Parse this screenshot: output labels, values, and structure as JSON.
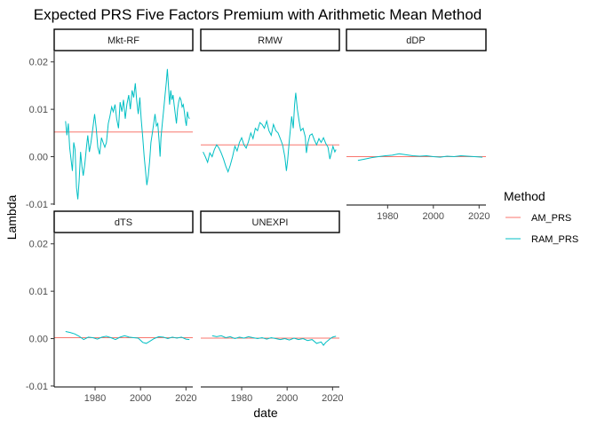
{
  "chart_data": {
    "type": "line",
    "title": "Expected PRS Five Factors Premium with Arithmetic Mean Method",
    "xlabel": "date",
    "ylabel": "Lambda",
    "xlim": [
      1962,
      2023
    ],
    "ylim": [
      -0.0102,
      0.0222
    ],
    "x_ticks": [
      1980,
      2000,
      2020
    ],
    "y_ticks": [
      -0.01,
      0.0,
      0.01,
      0.02
    ],
    "y_tick_labels": [
      "-0.01",
      "0.00",
      "0.01",
      "0.02"
    ],
    "grid": false,
    "legend": {
      "title": "Method",
      "position": "right",
      "entries": [
        {
          "label": "AM_PRS",
          "color": "#F8766D"
        },
        {
          "label": "RAM_PRS",
          "color": "#00BFC4"
        }
      ]
    },
    "panels": [
      {
        "name": "Mkt-RF",
        "am_value": 0.0052,
        "ram_series": [
          [
            1967.0,
            0.0075
          ],
          [
            1967.6,
            0.0045
          ],
          [
            1968.2,
            0.007
          ],
          [
            1968.8,
            0.002
          ],
          [
            1969.4,
            -0.0005
          ],
          [
            1970.0,
            -0.003
          ],
          [
            1970.6,
            0.003
          ],
          [
            1971.2,
            0.0015
          ],
          [
            1971.8,
            -0.0065
          ],
          [
            1972.4,
            -0.009
          ],
          [
            1973.0,
            -0.005
          ],
          [
            1973.6,
            0.001
          ],
          [
            1974.2,
            -0.002
          ],
          [
            1974.8,
            -0.004
          ],
          [
            1975.5,
            -0.0015
          ],
          [
            1976.2,
            0.002
          ],
          [
            1976.8,
            0.0045
          ],
          [
            1977.5,
            0.001
          ],
          [
            1978.2,
            0.003
          ],
          [
            1979.0,
            0.006
          ],
          [
            1979.8,
            0.009
          ],
          [
            1980.5,
            0.006
          ],
          [
            1981.2,
            0.002
          ],
          [
            1982.0,
            0.0005
          ],
          [
            1982.8,
            0.004
          ],
          [
            1983.5,
            0.003
          ],
          [
            1984.3,
            0.002
          ],
          [
            1985.0,
            0.003
          ],
          [
            1985.8,
            0.007
          ],
          [
            1986.5,
            0.0085
          ],
          [
            1987.3,
            0.0105
          ],
          [
            1988.0,
            0.0095
          ],
          [
            1988.8,
            0.011
          ],
          [
            1989.5,
            0.008
          ],
          [
            1990.3,
            0.006
          ],
          [
            1991.0,
            0.0115
          ],
          [
            1991.8,
            0.0095
          ],
          [
            1992.5,
            0.012
          ],
          [
            1993.3,
            0.008
          ],
          [
            1994.0,
            0.011
          ],
          [
            1994.8,
            0.013
          ],
          [
            1995.5,
            0.01
          ],
          [
            1996.3,
            0.014
          ],
          [
            1997.0,
            0.0125
          ],
          [
            1997.7,
            0.0155
          ],
          [
            1998.3,
            0.012
          ],
          [
            1999.0,
            0.009
          ],
          [
            1999.7,
            0.0125
          ],
          [
            2000.3,
            0.008
          ],
          [
            2001.0,
            0.004
          ],
          [
            2001.6,
            0.0
          ],
          [
            2002.2,
            -0.003
          ],
          [
            2002.8,
            -0.006
          ],
          [
            2003.4,
            -0.004
          ],
          [
            2004.0,
            -0.001
          ],
          [
            2004.6,
            0.003
          ],
          [
            2005.2,
            0.005
          ],
          [
            2005.8,
            0.007
          ],
          [
            2006.4,
            0.009
          ],
          [
            2007.0,
            0.0065
          ],
          [
            2007.6,
            0.007
          ],
          [
            2008.2,
            0.003
          ],
          [
            2008.6,
            0.0
          ],
          [
            2009.0,
            0.004
          ],
          [
            2009.6,
            0.007
          ],
          [
            2010.2,
            0.01
          ],
          [
            2010.8,
            0.013
          ],
          [
            2011.3,
            0.0155
          ],
          [
            2011.8,
            0.0185
          ],
          [
            2012.3,
            0.015
          ],
          [
            2012.8,
            0.011
          ],
          [
            2013.3,
            0.014
          ],
          [
            2013.8,
            0.012
          ],
          [
            2014.3,
            0.013
          ],
          [
            2014.8,
            0.011
          ],
          [
            2015.3,
            0.009
          ],
          [
            2015.8,
            0.007
          ],
          [
            2016.3,
            0.01
          ],
          [
            2016.8,
            0.0115
          ],
          [
            2017.3,
            0.0125
          ],
          [
            2017.8,
            0.012
          ],
          [
            2018.3,
            0.0105
          ],
          [
            2018.8,
            0.011
          ],
          [
            2019.3,
            0.0095
          ],
          [
            2019.8,
            0.0075
          ],
          [
            2020.2,
            0.0065
          ],
          [
            2020.6,
            0.0095
          ],
          [
            2021.0,
            0.0085
          ],
          [
            2021.5,
            0.008
          ]
        ]
      },
      {
        "name": "RMW",
        "am_value": 0.0025,
        "ram_series": [
          [
            1963.0,
            0.001
          ],
          [
            1964.0,
            0.0
          ],
          [
            1965.0,
            -0.0012
          ],
          [
            1966.0,
            0.0008
          ],
          [
            1967.0,
            0.0
          ],
          [
            1968.0,
            0.0015
          ],
          [
            1969.0,
            0.0025
          ],
          [
            1970.0,
            0.0018
          ],
          [
            1971.0,
            0.0008
          ],
          [
            1972.0,
            -0.0005
          ],
          [
            1973.0,
            -0.002
          ],
          [
            1974.0,
            -0.0032
          ],
          [
            1975.0,
            -0.0018
          ],
          [
            1976.0,
            0.0
          ],
          [
            1977.0,
            0.0022
          ],
          [
            1978.0,
            0.0012
          ],
          [
            1979.0,
            0.003
          ],
          [
            1980.0,
            0.004
          ],
          [
            1981.0,
            0.0025
          ],
          [
            1982.0,
            0.0018
          ],
          [
            1983.0,
            0.0032
          ],
          [
            1984.0,
            0.005
          ],
          [
            1985.0,
            0.0038
          ],
          [
            1986.0,
            0.006
          ],
          [
            1987.0,
            0.0055
          ],
          [
            1988.0,
            0.0072
          ],
          [
            1989.0,
            0.0068
          ],
          [
            1990.0,
            0.006
          ],
          [
            1991.0,
            0.0075
          ],
          [
            1992.0,
            0.0055
          ],
          [
            1993.0,
            0.0045
          ],
          [
            1994.0,
            0.0068
          ],
          [
            1995.0,
            0.0055
          ],
          [
            1996.0,
            0.005
          ],
          [
            1997.0,
            0.0038
          ],
          [
            1998.0,
            0.0025
          ],
          [
            1999.0,
            0.0
          ],
          [
            1999.7,
            -0.003
          ],
          [
            2000.3,
            -0.0005
          ],
          [
            2001.0,
            0.0035
          ],
          [
            2002.0,
            0.0085
          ],
          [
            2002.7,
            0.006
          ],
          [
            2003.3,
            0.011
          ],
          [
            2003.8,
            0.0135
          ],
          [
            2004.5,
            0.01
          ],
          [
            2005.3,
            0.0075
          ],
          [
            2006.0,
            0.0055
          ],
          [
            2007.0,
            0.006
          ],
          [
            2008.0,
            0.0042
          ],
          [
            2008.5,
            0.0008
          ],
          [
            2009.2,
            0.003
          ],
          [
            2010.0,
            0.0045
          ],
          [
            2011.0,
            0.0048
          ],
          [
            2012.0,
            0.0035
          ],
          [
            2013.0,
            0.0025
          ],
          [
            2014.0,
            0.0038
          ],
          [
            2015.0,
            0.003
          ],
          [
            2016.0,
            0.004
          ],
          [
            2017.0,
            0.0028
          ],
          [
            2018.0,
            0.002
          ],
          [
            2018.8,
            -0.0005
          ],
          [
            2019.5,
            0.0008
          ],
          [
            2020.2,
            0.0022
          ],
          [
            2021.0,
            0.001
          ],
          [
            2021.5,
            0.0015
          ]
        ]
      },
      {
        "name": "dDP",
        "am_value": 0.0,
        "ram_series": [
          [
            1967.0,
            -0.0008
          ],
          [
            1970.0,
            -0.0005
          ],
          [
            1973.0,
            -0.0002
          ],
          [
            1976.0,
            0.0
          ],
          [
            1979.0,
            0.0002
          ],
          [
            1982.0,
            0.0003
          ],
          [
            1985.0,
            0.0006
          ],
          [
            1988.0,
            0.0004
          ],
          [
            1991.0,
            0.0002
          ],
          [
            1994.0,
            0.0001
          ],
          [
            1997.0,
            0.0002
          ],
          [
            2000.0,
            0.0
          ],
          [
            2003.0,
            -0.0001
          ],
          [
            2006.0,
            0.0001
          ],
          [
            2009.0,
            0.0
          ],
          [
            2012.0,
            0.0002
          ],
          [
            2015.0,
            0.0001
          ],
          [
            2018.0,
            0.0
          ],
          [
            2021.5,
            -0.0001
          ]
        ]
      },
      {
        "name": "dTS",
        "am_value": 0.0002,
        "ram_series": [
          [
            1967.0,
            0.0015
          ],
          [
            1969.0,
            0.0013
          ],
          [
            1971.0,
            0.001
          ],
          [
            1973.0,
            0.0005
          ],
          [
            1975.0,
            -0.0002
          ],
          [
            1977.0,
            0.0003
          ],
          [
            1979.0,
            0.0002
          ],
          [
            1981.0,
            -0.0001
          ],
          [
            1983.0,
            0.0003
          ],
          [
            1985.0,
            0.0005
          ],
          [
            1987.0,
            0.0002
          ],
          [
            1989.0,
            -0.0002
          ],
          [
            1991.0,
            0.0003
          ],
          [
            1993.0,
            0.0006
          ],
          [
            1995.0,
            0.0003
          ],
          [
            1997.0,
            0.0002
          ],
          [
            1999.0,
            0.0001
          ],
          [
            2001.0,
            -0.0008
          ],
          [
            2002.5,
            -0.001
          ],
          [
            2004.0,
            -0.0006
          ],
          [
            2006.0,
            0.0
          ],
          [
            2008.0,
            0.0004
          ],
          [
            2010.0,
            0.0003
          ],
          [
            2012.0,
            0.0
          ],
          [
            2014.0,
            0.0003
          ],
          [
            2016.0,
            0.0001
          ],
          [
            2018.0,
            0.0003
          ],
          [
            2020.0,
            -0.0001
          ],
          [
            2021.5,
            -0.0002
          ]
        ]
      },
      {
        "name": "UNEXPI",
        "am_value": 0.0001,
        "ram_series": [
          [
            1967.0,
            0.0006
          ],
          [
            1969.0,
            0.0004
          ],
          [
            1971.0,
            0.0006
          ],
          [
            1973.0,
            0.0002
          ],
          [
            1975.0,
            0.0004
          ],
          [
            1977.0,
            0.0
          ],
          [
            1979.0,
            0.0003
          ],
          [
            1981.0,
            0.0001
          ],
          [
            1983.0,
            0.0004
          ],
          [
            1985.0,
            0.0002
          ],
          [
            1987.0,
            0.0
          ],
          [
            1989.0,
            0.0002
          ],
          [
            1991.0,
            -0.0001
          ],
          [
            1993.0,
            0.0002
          ],
          [
            1995.0,
            0.0
          ],
          [
            1997.0,
            -0.0002
          ],
          [
            1999.0,
            0.0
          ],
          [
            2001.0,
            -0.0003
          ],
          [
            2003.0,
            0.0001
          ],
          [
            2005.0,
            -0.0002
          ],
          [
            2007.0,
            0.0
          ],
          [
            2009.0,
            -0.0004
          ],
          [
            2011.0,
            -0.0002
          ],
          [
            2013.0,
            -0.001
          ],
          [
            2015.0,
            -0.0007
          ],
          [
            2016.0,
            -0.0014
          ],
          [
            2017.0,
            -0.0008
          ],
          [
            2018.0,
            -0.0004
          ],
          [
            2019.0,
            0.0
          ],
          [
            2020.0,
            0.0003
          ],
          [
            2021.5,
            0.0005
          ]
        ]
      }
    ]
  }
}
